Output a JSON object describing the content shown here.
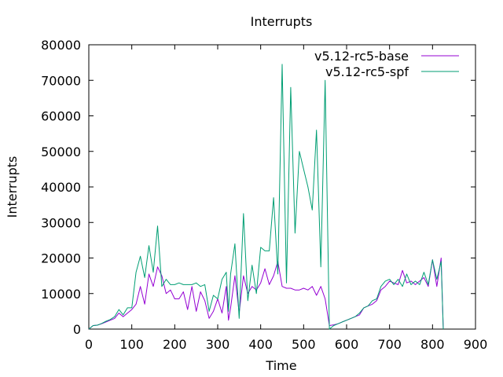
{
  "chart_data": {
    "type": "line",
    "title": "Interrupts",
    "xlabel": "Time",
    "ylabel": "Interrupts",
    "xlim": [
      0,
      900
    ],
    "ylim": [
      0,
      80000
    ],
    "x_ticks": [
      0,
      100,
      200,
      300,
      400,
      500,
      600,
      700,
      800,
      900
    ],
    "y_ticks": [
      0,
      10000,
      20000,
      30000,
      40000,
      50000,
      60000,
      70000,
      80000
    ],
    "grid": false,
    "legend": "top-right",
    "series": [
      {
        "name": "v5.12-rc5-base",
        "color": "#9400d3",
        "points": [
          [
            0,
            0
          ],
          [
            10,
            1000
          ],
          [
            20,
            1100
          ],
          [
            30,
            1500
          ],
          [
            40,
            2000
          ],
          [
            50,
            2500
          ],
          [
            60,
            3000
          ],
          [
            70,
            4500
          ],
          [
            80,
            3500
          ],
          [
            90,
            4500
          ],
          [
            100,
            5500
          ],
          [
            110,
            7000
          ],
          [
            120,
            12000
          ],
          [
            130,
            7000
          ],
          [
            140,
            15500
          ],
          [
            150,
            12000
          ],
          [
            160,
            17500
          ],
          [
            170,
            15000
          ],
          [
            180,
            10000
          ],
          [
            190,
            11000
          ],
          [
            200,
            8500
          ],
          [
            210,
            8500
          ],
          [
            220,
            10500
          ],
          [
            230,
            5500
          ],
          [
            240,
            12000
          ],
          [
            250,
            5000
          ],
          [
            260,
            10500
          ],
          [
            270,
            8000
          ],
          [
            280,
            3000
          ],
          [
            290,
            5000
          ],
          [
            300,
            8500
          ],
          [
            310,
            4500
          ],
          [
            320,
            12000
          ],
          [
            325,
            2500
          ],
          [
            330,
            6000
          ],
          [
            340,
            15000
          ],
          [
            350,
            4500
          ],
          [
            360,
            15000
          ],
          [
            370,
            10000
          ],
          [
            380,
            12000
          ],
          [
            390,
            11000
          ],
          [
            400,
            13000
          ],
          [
            410,
            17000
          ],
          [
            420,
            12500
          ],
          [
            430,
            15000
          ],
          [
            440,
            19000
          ],
          [
            450,
            12000
          ],
          [
            460,
            11500
          ],
          [
            470,
            11500
          ],
          [
            480,
            11000
          ],
          [
            490,
            11000
          ],
          [
            500,
            11500
          ],
          [
            510,
            11000
          ],
          [
            520,
            12000
          ],
          [
            530,
            9500
          ],
          [
            540,
            12000
          ],
          [
            550,
            8500
          ],
          [
            560,
            1000
          ],
          [
            570,
            1200
          ],
          [
            580,
            1500
          ],
          [
            590,
            2000
          ],
          [
            600,
            2500
          ],
          [
            610,
            3000
          ],
          [
            620,
            3500
          ],
          [
            630,
            4000
          ],
          [
            640,
            6000
          ],
          [
            650,
            6500
          ],
          [
            660,
            7000
          ],
          [
            670,
            8000
          ],
          [
            680,
            11000
          ],
          [
            690,
            12000
          ],
          [
            700,
            13500
          ],
          [
            710,
            13000
          ],
          [
            720,
            12500
          ],
          [
            730,
            16500
          ],
          [
            740,
            13000
          ],
          [
            750,
            13500
          ],
          [
            760,
            12500
          ],
          [
            770,
            13500
          ],
          [
            780,
            14500
          ],
          [
            790,
            12000
          ],
          [
            800,
            19500
          ],
          [
            810,
            12000
          ],
          [
            820,
            20000
          ],
          [
            825,
            0
          ]
        ]
      },
      {
        "name": "v5.12-rc5-spf",
        "color": "#009e73",
        "points": [
          [
            0,
            0
          ],
          [
            10,
            1000
          ],
          [
            20,
            1100
          ],
          [
            30,
            1600
          ],
          [
            40,
            2200
          ],
          [
            50,
            2700
          ],
          [
            60,
            3500
          ],
          [
            70,
            5500
          ],
          [
            80,
            4000
          ],
          [
            90,
            6000
          ],
          [
            100,
            6000
          ],
          [
            110,
            16000
          ],
          [
            120,
            20500
          ],
          [
            130,
            14500
          ],
          [
            140,
            23500
          ],
          [
            150,
            16000
          ],
          [
            160,
            29000
          ],
          [
            170,
            12000
          ],
          [
            180,
            14000
          ],
          [
            190,
            12500
          ],
          [
            200,
            12500
          ],
          [
            210,
            13000
          ],
          [
            220,
            12500
          ],
          [
            230,
            12500
          ],
          [
            240,
            12500
          ],
          [
            250,
            13000
          ],
          [
            260,
            12000
          ],
          [
            270,
            12500
          ],
          [
            280,
            5000
          ],
          [
            290,
            9500
          ],
          [
            300,
            8500
          ],
          [
            310,
            14000
          ],
          [
            320,
            16000
          ],
          [
            325,
            5000
          ],
          [
            330,
            15500
          ],
          [
            340,
            24000
          ],
          [
            350,
            3000
          ],
          [
            360,
            32500
          ],
          [
            370,
            8000
          ],
          [
            380,
            18000
          ],
          [
            390,
            10000
          ],
          [
            400,
            23000
          ],
          [
            410,
            22000
          ],
          [
            420,
            22000
          ],
          [
            430,
            37000
          ],
          [
            440,
            15500
          ],
          [
            450,
            74500
          ],
          [
            460,
            13000
          ],
          [
            470,
            68000
          ],
          [
            480,
            27000
          ],
          [
            490,
            50000
          ],
          [
            500,
            45000
          ],
          [
            510,
            40000
          ],
          [
            520,
            33500
          ],
          [
            530,
            56000
          ],
          [
            540,
            17500
          ],
          [
            550,
            70000
          ],
          [
            560,
            0
          ],
          [
            570,
            1000
          ],
          [
            580,
            1500
          ],
          [
            590,
            2000
          ],
          [
            600,
            2500
          ],
          [
            610,
            3000
          ],
          [
            620,
            3500
          ],
          [
            630,
            4500
          ],
          [
            640,
            6000
          ],
          [
            650,
            6500
          ],
          [
            660,
            8000
          ],
          [
            670,
            8500
          ],
          [
            680,
            12000
          ],
          [
            690,
            13500
          ],
          [
            700,
            14000
          ],
          [
            710,
            12500
          ],
          [
            720,
            14000
          ],
          [
            730,
            12000
          ],
          [
            740,
            15500
          ],
          [
            750,
            12500
          ],
          [
            760,
            13500
          ],
          [
            770,
            12500
          ],
          [
            780,
            16000
          ],
          [
            790,
            12500
          ],
          [
            800,
            19500
          ],
          [
            810,
            14000
          ],
          [
            820,
            19000
          ],
          [
            825,
            0
          ]
        ]
      }
    ]
  }
}
